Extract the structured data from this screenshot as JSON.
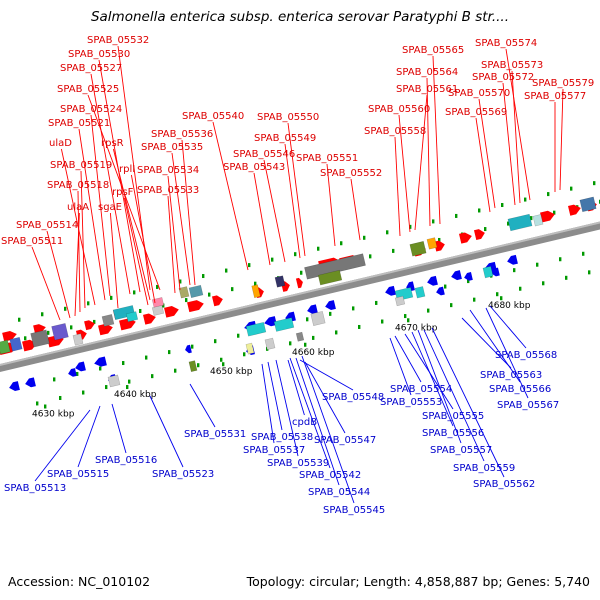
{
  "title": "Salmonella enterica subsp. enterica serovar Paratyphi B str....",
  "footer": {
    "accession": "Accession: NC_010102",
    "stats": "Topology: circular; Length: 4,858,887 bp; Genes: 5,740"
  },
  "colors": {
    "upper_label": "#dd0000",
    "lower_label": "#0000cc",
    "forward_gene": "#ff0000",
    "reverse_gene": "#0000ee",
    "backbone": "#8c8c8c",
    "tick": "#009900"
  },
  "scale": [
    {
      "label": "4630 kbp"
    },
    {
      "label": "4640 kbp"
    },
    {
      "label": "4650 kbp"
    },
    {
      "label": "4660 kbp"
    },
    {
      "label": "4670 kbp"
    },
    {
      "label": "4680 kbp"
    }
  ],
  "upper_labels": [
    {
      "text": "SPAB_05532"
    },
    {
      "text": "SPAB_05530"
    },
    {
      "text": "SPAB_05527"
    },
    {
      "text": "SPAB_05525"
    },
    {
      "text": "SPAB_05524"
    },
    {
      "text": "SPAB_05521"
    },
    {
      "text": "ulaD"
    },
    {
      "text": "rpsR"
    },
    {
      "text": "SPAB_05519"
    },
    {
      "text": "rplI"
    },
    {
      "text": "SPAB_05518"
    },
    {
      "text": "rpsF"
    },
    {
      "text": "ulaA"
    },
    {
      "text": "sgaE"
    },
    {
      "text": "SPAB_05514"
    },
    {
      "text": "SPAB_05511"
    },
    {
      "text": "SPAB_05536"
    },
    {
      "text": "SPAB_05535"
    },
    {
      "text": "SPAB_05534"
    },
    {
      "text": "SPAB_05533"
    },
    {
      "text": "SPAB_05540"
    },
    {
      "text": "SPAB_05550"
    },
    {
      "text": "SPAB_05549"
    },
    {
      "text": "SPAB_05546"
    },
    {
      "text": "SPAB_05543"
    },
    {
      "text": "SPAB_05551"
    },
    {
      "text": "SPAB_05552"
    },
    {
      "text": "SPAB_05565"
    },
    {
      "text": "SPAB_05574"
    },
    {
      "text": "SPAB_05573"
    },
    {
      "text": "SPAB_05564"
    },
    {
      "text": "SPAB_05572"
    },
    {
      "text": "SPAB_05561"
    },
    {
      "text": "SPAB_05570"
    },
    {
      "text": "SPAB_05579"
    },
    {
      "text": "SPAB_05577"
    },
    {
      "text": "SPAB_05560"
    },
    {
      "text": "SPAB_05569"
    },
    {
      "text": "SPAB_05558"
    }
  ],
  "lower_labels": [
    {
      "text": "SPAB_05568"
    },
    {
      "text": "SPAB_05563"
    },
    {
      "text": "SPAB_05566"
    },
    {
      "text": "SPAB_05567"
    },
    {
      "text": "SPAB_05554"
    },
    {
      "text": "SPAB_05553"
    },
    {
      "text": "SPAB_05555"
    },
    {
      "text": "SPAB_05556"
    },
    {
      "text": "SPAB_05557"
    },
    {
      "text": "SPAB_05559"
    },
    {
      "text": "SPAB_05562"
    },
    {
      "text": "SPAB_05548"
    },
    {
      "text": "cpdB"
    },
    {
      "text": "SPAB_05547"
    },
    {
      "text": "SPAB_05531"
    },
    {
      "text": "SPAB_05538"
    },
    {
      "text": "SPAB_05537"
    },
    {
      "text": "SPAB_05539"
    },
    {
      "text": "SPAB_05542"
    },
    {
      "text": "SPAB_05544"
    },
    {
      "text": "SPAB_05545"
    },
    {
      "text": "SPAB_05516"
    },
    {
      "text": "SPAB_05515"
    },
    {
      "text": "SPAB_05523"
    },
    {
      "text": "SPAB_05513"
    }
  ]
}
